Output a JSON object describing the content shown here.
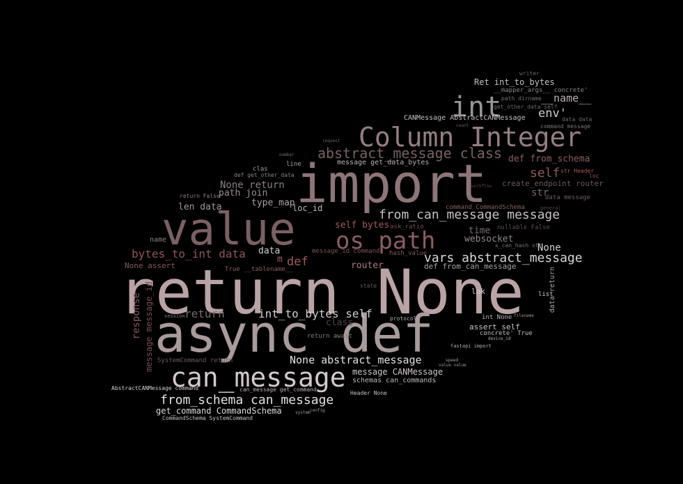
{
  "words": [
    {
      "text": "return None",
      "color": "#b9a3a5"
    },
    {
      "text": "async def",
      "color": "#a99a9c"
    },
    {
      "text": "import",
      "color": "#8d7579"
    },
    {
      "text": "value",
      "color": "#7a6064"
    },
    {
      "text": "Column Integer",
      "color": "#957e82"
    },
    {
      "text": "can_message",
      "color": "#d2c9ca"
    },
    {
      "text": "os path",
      "color": "#8b5d62"
    },
    {
      "text": "int",
      "color": "#9a9698"
    },
    {
      "text": "abstract_message class",
      "color": "#7a6165"
    },
    {
      "text": "from_can_message message",
      "color": "#c8c2c3"
    },
    {
      "text": "vars abstract_message",
      "color": "#dad6d7"
    },
    {
      "text": "Column Integer",
      "color": "#957e82"
    },
    {
      "text": "from_schema can_message",
      "color": "#e6e1e2"
    },
    {
      "text": "Ret int_to_bytes",
      "color": "#c7c2c3"
    },
    {
      "text": "__name__",
      "color": "#b8b3b4"
    },
    {
      "text": "env'",
      "color": "#d0cbcc"
    },
    {
      "text": "def from_schema",
      "color": "#8f5f64"
    },
    {
      "text": "self",
      "color": "#8f5a60"
    },
    {
      "text": "str",
      "color": "#7e6a6c"
    },
    {
      "text": "create_endpoint router",
      "color": "#6b585a"
    },
    {
      "text": "None return",
      "color": "#8c7f81"
    },
    {
      "text": "path join",
      "color": "#9a8e90"
    },
    {
      "text": "type_map",
      "color": "#a9a0a1"
    },
    {
      "text": "len data",
      "color": "#a19698"
    },
    {
      "text": "loc_id",
      "color": "#bdb7b8"
    },
    {
      "text": "self bytes",
      "color": "#a5585f"
    },
    {
      "text": "bytes_to_int data",
      "color": "#90565c"
    },
    {
      "text": "def",
      "color": "#a05960"
    },
    {
      "text": "data",
      "color": "#d4cfd0"
    },
    {
      "text": "router",
      "color": "#b1797e"
    },
    {
      "text": "time",
      "color": "#7a6f71"
    },
    {
      "text": "websocket",
      "color": "#8f8a8b"
    },
    {
      "text": "None",
      "color": "#d6d0d1"
    },
    {
      "text": "def from_can_message",
      "color": "#a8a1a2"
    },
    {
      "text": "return",
      "color": "#7a6b6d"
    },
    {
      "text": "int_to_bytes self",
      "color": "#d2cccd"
    },
    {
      "text": "None abstract_message",
      "color": "#e5e0e1"
    },
    {
      "text": "message CANMessage",
      "color": "#cdc8c9"
    },
    {
      "text": "schemas can_commands",
      "color": "#bfbabb"
    },
    {
      "text": "get_command CommandSchema",
      "color": "#dfdadb"
    },
    {
      "text": "CommandSchema SystemCommand",
      "color": "#c6c1c2"
    },
    {
      "text": "response",
      "color": "#86575c"
    },
    {
      "text": "message message_id",
      "color": "#7a4d52"
    },
    {
      "text": "None assert",
      "color": "#8a5a5f"
    },
    {
      "text": "name",
      "color": "#8c8385"
    },
    {
      "text": "message get_data_bytes",
      "color": "#b9b3b4"
    },
    {
      "text": "CANMessage AbstractCANMessage",
      "color": "#c4bfc0"
    },
    {
      "text": "loc",
      "color": "#9d5a60"
    },
    {
      "text": "message_id command",
      "color": "#7f5358"
    },
    {
      "text": "assert self",
      "color": "#cfcacb"
    },
    {
      "text": "concrete' True",
      "color": "#c3bebf"
    },
    {
      "text": "int None",
      "color": "#bcb7b8"
    },
    {
      "text": "lok",
      "color": "#d3cecf"
    },
    {
      "text": "list",
      "color": "#cbc6c7"
    },
    {
      "text": "fastapi import",
      "color": "#b3aeaf"
    },
    {
      "text": "Header None",
      "color": "#c8c3c4"
    },
    {
      "text": "return await",
      "color": "#8a7f81"
    },
    {
      "text": "SystemCommand return",
      "color": "#6e5e61"
    },
    {
      "text": "AbstractCANMessage command",
      "color": "#d4cfd0"
    },
    {
      "text": "command CommandSchema",
      "color": "#8d6064"
    },
    {
      "text": "hash_value",
      "color": "#7d5a5e"
    },
    {
      "text": "ask_ratio",
      "color": "#7a4f53"
    },
    {
      "text": "nullable False",
      "color": "#5c5253"
    },
    {
      "text": "__mapper_args__ concrete'",
      "color": "#8a8586"
    },
    {
      "text": "path dirname",
      "color": "#777273"
    },
    {
      "text": "get_other_data self",
      "color": "#6f6a6b"
    },
    {
      "text": "command message",
      "color": "#7b7677"
    },
    {
      "text": "data data",
      "color": "#6f6a6b"
    },
    {
      "text": "writer",
      "color": "#6d6869"
    },
    {
      "text": "data message",
      "color": "#6d6264"
    },
    {
      "text": "line",
      "color": "#a8a3a4"
    },
    {
      "text": "clas",
      "color": "#a39ea0"
    },
    {
      "text": "def get_other_data",
      "color": "#8a8586"
    },
    {
      "text": "return False",
      "color": "#8a8586"
    },
    {
      "text": "True __tablename__",
      "color": "#8d5d62"
    },
    {
      "text": "m",
      "color": "#a35a61"
    },
    {
      "text": "class",
      "color": "#4e4446"
    },
    {
      "text": "can_message get_command",
      "color": "#b9b4b5"
    },
    {
      "text": "protocol",
      "color": "#b5b0b1"
    },
    {
      "text": "x_can_hash str",
      "color": "#777273"
    },
    {
      "text": "session",
      "color": "#8a8586"
    },
    {
      "text": "state",
      "color": "#6e5a5d"
    },
    {
      "text": "filename",
      "color": "#9a9596"
    },
    {
      "text": "device_id",
      "color": "#b7b2b3"
    },
    {
      "text": "data return",
      "color": "#a9a4a5"
    },
    {
      "text": "config",
      "color": "#a5a0a1"
    },
    {
      "text": "system",
      "color": "#a5a0a1"
    },
    {
      "text": "speed",
      "color": "#a5a0a1"
    },
    {
      "text": "value value",
      "color": "#9e999a"
    },
    {
      "text": "count",
      "color": "#6e6a6b"
    },
    {
      "text": "str Header",
      "color": "#a9585f"
    },
    {
      "text": "workflow",
      "color": "#6e3f44"
    },
    {
      "text": "general",
      "color": "#4f4a4b"
    },
    {
      "text": "number",
      "color": "#7a7576"
    },
    {
      "text": "request",
      "color": "#6a6566"
    }
  ]
}
